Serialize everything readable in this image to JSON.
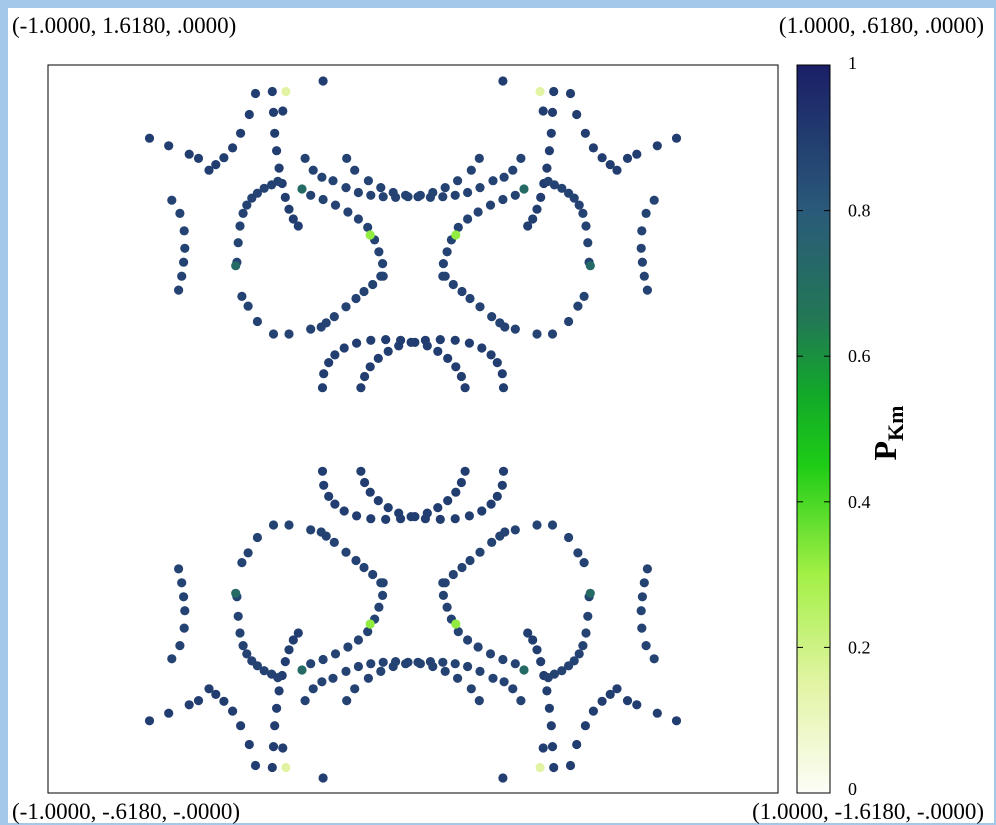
{
  "corners": {
    "top_left": "(-1.0000, 1.6180, .0000)",
    "top_right": "(1.0000, .6180, .0000)",
    "bottom_left": "(-1.0000, -.6180, -.0000)",
    "bottom_right": "(1.0000, -1.6180, -.0000)"
  },
  "colors": {
    "page_border": "#a4c8e8",
    "point_dark": "#253a78",
    "point_teal": "#2e6f6a",
    "point_green": "#9de84a",
    "point_pale": "#d8f28c"
  },
  "chart_data": {
    "type": "scatter",
    "title": "",
    "xlabel": "",
    "ylabel": "",
    "xlim": [
      0,
      1
    ],
    "ylim": [
      0,
      1
    ],
    "grid": false,
    "colorbar": {
      "label_main": "P",
      "label_sub": "Km",
      "range": [
        0,
        1
      ],
      "ticks": [
        "0",
        "0.2",
        "0.4",
        "0.6",
        "0.8",
        "1"
      ],
      "stops": [
        {
          "v": 0.0,
          "color": "#fdfdf8"
        },
        {
          "v": 0.15,
          "color": "#e2f4a4"
        },
        {
          "v": 0.3,
          "color": "#a3f046"
        },
        {
          "v": 0.45,
          "color": "#1ecc16"
        },
        {
          "v": 0.55,
          "color": "#12a82a"
        },
        {
          "v": 0.65,
          "color": "#227855"
        },
        {
          "v": 0.8,
          "color": "#2a5a7a"
        },
        {
          "v": 1.0,
          "color": "#1a1f66"
        }
      ]
    },
    "symmetry": "mirror about x=0.5 and y=0.5",
    "arcs": [
      {
        "name": "corner-arc",
        "value": 0.9,
        "points": [
          [
            0.273,
            0.015
          ],
          [
            0.275,
            0.045
          ],
          [
            0.277,
            0.075
          ],
          [
            0.28,
            0.1
          ],
          [
            0.284,
            0.125
          ],
          [
            0.289,
            0.147
          ],
          [
            0.294,
            0.167
          ],
          [
            0.3,
            0.184
          ],
          [
            0.307,
            0.198
          ],
          [
            0.315,
            0.208
          ],
          [
            0.246,
            0.018
          ],
          [
            0.236,
            0.048
          ],
          [
            0.222,
            0.075
          ],
          [
            0.209,
            0.096
          ],
          [
            0.195,
            0.11
          ],
          [
            0.182,
            0.12
          ],
          [
            0.171,
            0.128
          ]
        ]
      },
      {
        "name": "corner-tail",
        "value": 0.9,
        "points": [
          [
            0.139,
            0.105
          ],
          [
            0.154,
            0.111
          ],
          [
            0.106,
            0.093
          ],
          [
            0.075,
            0.082
          ]
        ]
      },
      {
        "name": "top-arc",
        "value": 0.88,
        "points": [
          [
            0.371,
            0.143
          ],
          [
            0.392,
            0.153
          ],
          [
            0.412,
            0.16
          ],
          [
            0.432,
            0.164
          ],
          [
            0.452,
            0.166
          ],
          [
            0.472,
            0.167
          ],
          [
            0.492,
            0.166
          ],
          [
            0.512,
            0.164
          ],
          [
            0.532,
            0.16
          ],
          [
            0.552,
            0.153
          ],
          [
            0.572,
            0.143
          ],
          [
            0.326,
            0.111
          ],
          [
            0.339,
            0.128
          ],
          [
            0.353,
            0.138
          ],
          [
            0.594,
            0.128
          ],
          [
            0.607,
            0.111
          ]
        ]
      },
      {
        "name": "top-dots",
        "value": 0.9,
        "points": [
          [
            0.355,
            0.0
          ],
          [
            0.29,
            0.043
          ]
        ]
      },
      {
        "name": "pale-point",
        "value": 0.15,
        "points": [
          [
            0.295,
            0.015
          ]
        ]
      },
      {
        "name": "side-arc",
        "value": 0.88,
        "points": [
          [
            0.216,
            0.26
          ],
          [
            0.218,
            0.232
          ],
          [
            0.221,
            0.208
          ],
          [
            0.226,
            0.19
          ],
          [
            0.232,
            0.178
          ],
          [
            0.24,
            0.168
          ],
          [
            0.249,
            0.161
          ],
          [
            0.26,
            0.154
          ],
          [
            0.272,
            0.149
          ],
          [
            0.282,
            0.144
          ],
          [
            0.111,
            0.171
          ],
          [
            0.124,
            0.19
          ],
          [
            0.131,
            0.215
          ],
          [
            0.132,
            0.24
          ],
          [
            0.13,
            0.26
          ],
          [
            0.127,
            0.28
          ],
          [
            0.122,
            0.3
          ]
        ]
      },
      {
        "name": "side-arc-teal",
        "value": 0.72,
        "points": [
          [
            0.214,
            0.265
          ],
          [
            0.321,
            0.155
          ]
        ]
      },
      {
        "name": "wing-arc",
        "value": 0.88,
        "points": [
          [
            0.335,
            0.164
          ],
          [
            0.355,
            0.17
          ],
          [
            0.375,
            0.178
          ],
          [
            0.395,
            0.188
          ],
          [
            0.412,
            0.198
          ],
          [
            0.427,
            0.21
          ],
          [
            0.438,
            0.228
          ],
          [
            0.445,
            0.245
          ],
          [
            0.451,
            0.262
          ],
          [
            0.452,
            0.28
          ]
        ]
      },
      {
        "name": "wing-green",
        "value": 0.32,
        "points": [
          [
            0.431,
            0.221
          ]
        ]
      },
      {
        "name": "wing-lower",
        "value": 0.88,
        "points": [
          [
            0.224,
            0.309
          ],
          [
            0.234,
            0.323
          ],
          [
            0.249,
            0.345
          ],
          [
            0.275,
            0.363
          ],
          [
            0.3,
            0.363
          ],
          [
            0.335,
            0.356
          ],
          [
            0.352,
            0.353
          ],
          [
            0.36,
            0.347
          ],
          [
            0.373,
            0.338
          ],
          [
            0.392,
            0.324
          ],
          [
            0.408,
            0.312
          ],
          [
            0.421,
            0.302
          ],
          [
            0.435,
            0.292
          ],
          [
            0.448,
            0.28
          ]
        ]
      },
      {
        "name": "center-arc",
        "value": 0.9,
        "points": [
          [
            0.354,
            0.44
          ],
          [
            0.356,
            0.42
          ],
          [
            0.364,
            0.404
          ],
          [
            0.374,
            0.393
          ],
          [
            0.389,
            0.383
          ],
          [
            0.409,
            0.376
          ],
          [
            0.432,
            0.372
          ],
          [
            0.456,
            0.371
          ],
          [
            0.48,
            0.372
          ],
          [
            0.503,
            0.375
          ],
          [
            0.523,
            0.38
          ],
          [
            0.54,
            0.388
          ],
          [
            0.556,
            0.398
          ],
          [
            0.569,
            0.41
          ],
          [
            0.578,
            0.424
          ],
          [
            0.584,
            0.44
          ]
        ]
      }
    ]
  }
}
